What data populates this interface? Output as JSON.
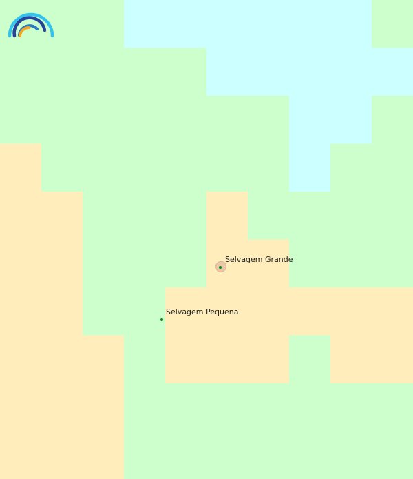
{
  "map": {
    "colors": {
      "grassland": "#ccffcc",
      "water": "#ccffff",
      "sand": "#ffeebb",
      "settlement": "#e8c8a8",
      "marker": "#118811"
    },
    "places": [
      {
        "name": "Selvagem Grande"
      },
      {
        "name": "Selvagem Pequena"
      }
    ]
  },
  "logo": {
    "icon": "rainbow-arcs-logo"
  }
}
